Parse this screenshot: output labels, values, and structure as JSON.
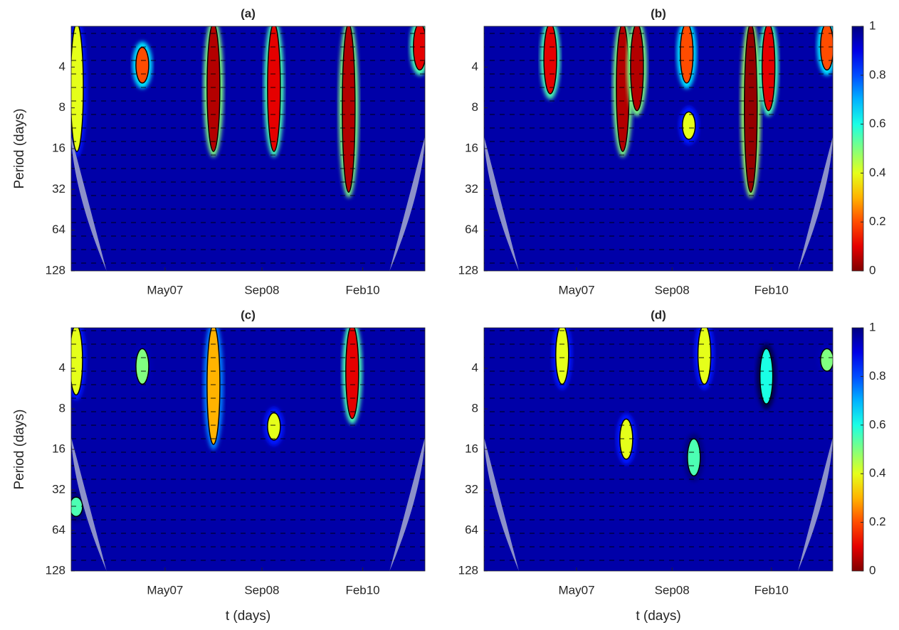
{
  "chart_data": [
    {
      "type": "heatmap",
      "title": "(a)",
      "ylabel": "Period (days)",
      "ylog": true,
      "yreverse": true,
      "xlim": [
        0,
        1790
      ],
      "xticks": [
        {
          "value": 475,
          "label": "May07"
        },
        {
          "value": 965,
          "label": "Sep08"
        },
        {
          "value": 1475,
          "label": "Feb10"
        }
      ],
      "ylim": [
        2,
        128
      ],
      "yticks": [
        4,
        8,
        16,
        32,
        64,
        128
      ],
      "regions": [
        {
          "x": 29,
          "period": [
            2,
            16
          ],
          "value": 0.4
        },
        {
          "x": 360,
          "period": [
            3,
            5
          ],
          "value": 0.2
        },
        {
          "x": 720,
          "period": [
            2,
            16
          ],
          "value": 0.05
        },
        {
          "x": 1026,
          "period": [
            2,
            16
          ],
          "value": 0.1
        },
        {
          "x": 1404,
          "period": [
            2,
            32
          ],
          "value": 0.05
        },
        {
          "x": 1764,
          "period": [
            2,
            4
          ],
          "value": 0.1
        }
      ]
    },
    {
      "type": "heatmap",
      "title": "(b)",
      "ylog": true,
      "yreverse": true,
      "xlim": [
        0,
        1790
      ],
      "xticks": [
        {
          "value": 475,
          "label": "May07"
        },
        {
          "value": 965,
          "label": "Sep08"
        },
        {
          "value": 1475,
          "label": "Feb10"
        }
      ],
      "ylim": [
        2,
        128
      ],
      "yticks": [
        4,
        8,
        16,
        32,
        64,
        128
      ],
      "colorbar": {
        "lim": [
          0,
          1
        ],
        "ticks": [
          0,
          0.2,
          0.4,
          0.6,
          0.8,
          1
        ]
      },
      "regions": [
        {
          "x": 340,
          "period": [
            2,
            6
          ],
          "value": 0.1
        },
        {
          "x": 712,
          "period": [
            2,
            16
          ],
          "value": 0.05
        },
        {
          "x": 785,
          "period": [
            2,
            8
          ],
          "value": 0.05
        },
        {
          "x": 1040,
          "period": [
            2,
            5
          ],
          "value": 0.2
        },
        {
          "x": 1051,
          "period": [
            9,
            13
          ],
          "value": 0.4
        },
        {
          "x": 1369,
          "period": [
            2,
            32
          ],
          "value": 0.02
        },
        {
          "x": 1460,
          "period": [
            2,
            8
          ],
          "value": 0.1
        },
        {
          "x": 1760,
          "period": [
            2,
            4
          ],
          "value": 0.2
        }
      ]
    },
    {
      "type": "heatmap",
      "title": "(c)",
      "ylabel": "Period (days)",
      "xlabel": "t (days)",
      "ylog": true,
      "yreverse": true,
      "xlim": [
        0,
        1790
      ],
      "xticks": [
        {
          "value": 475,
          "label": "May07"
        },
        {
          "value": 965,
          "label": "Sep08"
        },
        {
          "value": 1475,
          "label": "Feb10"
        }
      ],
      "ylim": [
        2,
        128
      ],
      "yticks": [
        4,
        8,
        16,
        32,
        64,
        128
      ],
      "regions": [
        {
          "x": 25,
          "period": [
            2,
            6
          ],
          "value": 0.4
        },
        {
          "x": 25,
          "period": [
            38,
            48
          ],
          "value": 0.55
        },
        {
          "x": 360,
          "period": [
            3,
            5
          ],
          "value": 0.5
        },
        {
          "x": 720,
          "period": [
            2,
            14
          ],
          "value": 0.3
        },
        {
          "x": 1026,
          "period": [
            9,
            13
          ],
          "value": 0.4
        },
        {
          "x": 1422,
          "period": [
            2,
            9
          ],
          "value": 0.1
        }
      ]
    },
    {
      "type": "heatmap",
      "title": "(d)",
      "xlabel": "t (days)",
      "ylog": true,
      "yreverse": true,
      "xlim": [
        0,
        1790
      ],
      "xticks": [
        {
          "value": 475,
          "label": "May07"
        },
        {
          "value": 965,
          "label": "Sep08"
        },
        {
          "value": 1475,
          "label": "Feb10"
        }
      ],
      "ylim": [
        2,
        128
      ],
      "yticks": [
        4,
        8,
        16,
        32,
        64,
        128
      ],
      "colorbar": {
        "lim": [
          0,
          1
        ],
        "ticks": [
          0,
          0.2,
          0.4,
          0.6,
          0.8,
          1
        ]
      },
      "regions": [
        {
          "x": 401,
          "period": [
            2,
            5
          ],
          "value": 0.4
        },
        {
          "x": 730,
          "period": [
            10,
            18
          ],
          "value": 0.4
        },
        {
          "x": 1077,
          "period": [
            14,
            24
          ],
          "value": 0.55
        },
        {
          "x": 1131,
          "period": [
            2,
            5
          ],
          "value": 0.4
        },
        {
          "x": 1449,
          "period": [
            3,
            7
          ],
          "value": 0.6
        },
        {
          "x": 1760,
          "period": [
            3,
            4
          ],
          "value": 0.5
        }
      ]
    }
  ]
}
